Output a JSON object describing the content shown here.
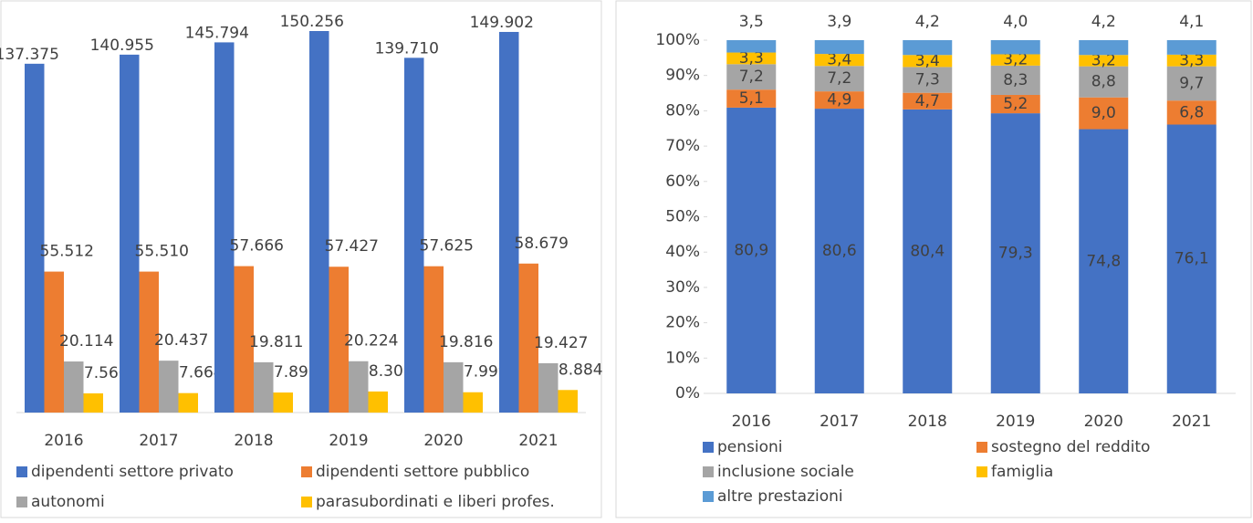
{
  "chart_data": [
    {
      "type": "bar",
      "stacked": false,
      "categories": [
        "2016",
        "2017",
        "2018",
        "2019",
        "2020",
        "2021"
      ],
      "series": [
        {
          "name": "dipendenti settore privato",
          "color": "#4472c4",
          "values": [
            137375,
            140955,
            145794,
            150256,
            139710,
            149902
          ],
          "value_labels": [
            "137.375",
            "140.955",
            "145.794",
            "150.256",
            "139.710",
            "149.902"
          ]
        },
        {
          "name": "dipendenti settore pubblico",
          "color": "#ed7d31",
          "values": [
            55512,
            55510,
            57666,
            57427,
            57625,
            58679
          ],
          "value_labels": [
            "55.512",
            "55.510",
            "57.666",
            "57.427",
            "57.625",
            "58.679"
          ]
        },
        {
          "name": "autonomi",
          "color": "#a5a5a5",
          "values": [
            20114,
            20437,
            19811,
            20224,
            19816,
            19427
          ],
          "value_labels": [
            "20.114",
            "20.437",
            "19.811",
            "20.224",
            "19.816",
            "19.427"
          ]
        },
        {
          "name": "parasubordinati e liberi profes.",
          "color": "#ffc000",
          "values": [
            7560,
            7664,
            7895,
            8303,
            7999,
            8884
          ],
          "value_labels": [
            "7.560",
            "7.664",
            "7.895",
            "8.303",
            "7.999",
            "8.884"
          ]
        }
      ]
    },
    {
      "type": "bar",
      "stacked": true,
      "categories": [
        "2016",
        "2017",
        "2018",
        "2019",
        "2020",
        "2021"
      ],
      "ylim": [
        0,
        100
      ],
      "yticks": [
        {
          "value": 0,
          "label": "0%"
        },
        {
          "value": 10,
          "label": "10%"
        },
        {
          "value": 20,
          "label": "20%"
        },
        {
          "value": 30,
          "label": "30%"
        },
        {
          "value": 40,
          "label": "40%"
        },
        {
          "value": 50,
          "label": "50%"
        },
        {
          "value": 60,
          "label": "60%"
        },
        {
          "value": 70,
          "label": "70%"
        },
        {
          "value": 80,
          "label": "80%"
        },
        {
          "value": 90,
          "label": "90%"
        },
        {
          "value": 100,
          "label": "100%"
        }
      ],
      "series": [
        {
          "name": "pensioni",
          "color": "#4472c4",
          "values": [
            80.9,
            80.6,
            80.4,
            79.3,
            74.8,
            76.1
          ],
          "value_labels": [
            "80,9",
            "80,6",
            "80,4",
            "79,3",
            "74,8",
            "76,1"
          ]
        },
        {
          "name": "sostegno del reddito",
          "color": "#ed7d31",
          "values": [
            5.1,
            4.9,
            4.7,
            5.2,
            9.0,
            6.8
          ],
          "value_labels": [
            "5,1",
            "4,9",
            "4,7",
            "5,2",
            "9,0",
            "6,8"
          ]
        },
        {
          "name": "inclusione sociale",
          "color": "#a5a5a5",
          "values": [
            7.2,
            7.2,
            7.3,
            8.3,
            8.8,
            9.7
          ],
          "value_labels": [
            "7,2",
            "7,2",
            "7,3",
            "8,3",
            "8,8",
            "9,7"
          ]
        },
        {
          "name": "famiglia",
          "color": "#ffc000",
          "values": [
            3.3,
            3.4,
            3.4,
            3.2,
            3.2,
            3.3
          ],
          "value_labels": [
            "3,3",
            "3,4",
            "3,4",
            "3,2",
            "3,2",
            "3,3"
          ]
        },
        {
          "name": "altre prestazioni",
          "color": "#5b9bd5",
          "values": [
            3.5,
            3.9,
            4.2,
            4.0,
            4.2,
            4.1
          ],
          "value_labels": [
            "3,5",
            "3,9",
            "4,2",
            "4,0",
            "4,2",
            "4,1"
          ]
        }
      ]
    }
  ]
}
